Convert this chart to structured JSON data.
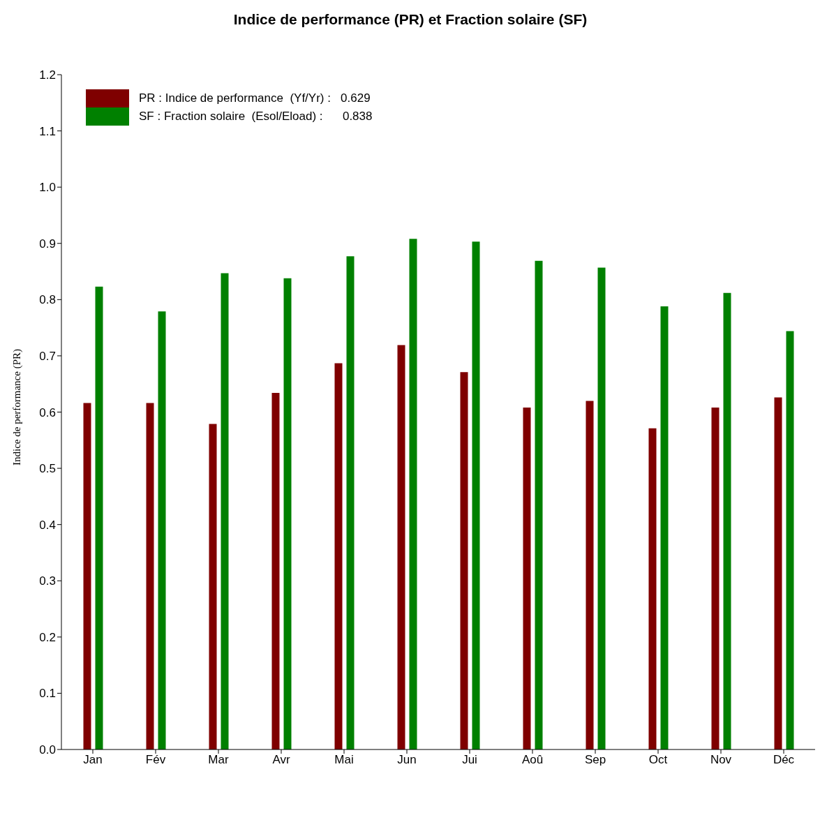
{
  "chart_data": {
    "type": "bar",
    "title": "Indice de performance (PR)  et Fraction solaire (SF)",
    "ylabel": "Indice de performance (PR)",
    "categories": [
      "Jan",
      "Fév",
      "Mar",
      "Avr",
      "Mai",
      "Jun",
      "Jui",
      "Aoû",
      "Sep",
      "Oct",
      "Nov",
      "Déc"
    ],
    "series": [
      {
        "name": "PR : Indice de performance  (Yf/Yr) :   0.629",
        "color": "#7f0000",
        "values": [
          0.616,
          0.616,
          0.579,
          0.634,
          0.687,
          0.719,
          0.671,
          0.608,
          0.62,
          0.571,
          0.608,
          0.626
        ]
      },
      {
        "name": "SF : Fraction solaire  (Esol/Eload) :      0.838",
        "color": "#008000",
        "values": [
          0.823,
          0.779,
          0.847,
          0.838,
          0.877,
          0.908,
          0.903,
          0.869,
          0.857,
          0.788,
          0.812,
          0.744
        ]
      }
    ],
    "ylim": [
      0,
      1.2
    ],
    "yticks": [
      {
        "value": 0,
        "label": "0.0"
      },
      {
        "value": 0.1,
        "label": "0.1"
      },
      {
        "value": 0.2,
        "label": "0.2"
      },
      {
        "value": 0.3,
        "label": "0.3"
      },
      {
        "value": 0.4,
        "label": "0.4"
      },
      {
        "value": 0.5,
        "label": "0.5"
      },
      {
        "value": 0.6,
        "label": "0.6"
      },
      {
        "value": 0.7,
        "label": "0.7"
      },
      {
        "value": 0.8,
        "label": "0.8"
      },
      {
        "value": 0.9,
        "label": "0.9"
      },
      {
        "value": 1.0,
        "label": "1.0"
      },
      {
        "value": 1.1,
        "label": "1.1"
      },
      {
        "value": 1.2,
        "label": "1.2"
      }
    ],
    "grid": false,
    "legend": "top left"
  }
}
